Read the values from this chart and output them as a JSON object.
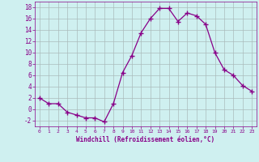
{
  "x": [
    0,
    1,
    2,
    3,
    4,
    5,
    6,
    7,
    8,
    9,
    10,
    11,
    12,
    13,
    14,
    15,
    16,
    17,
    18,
    19,
    20,
    21,
    22,
    23
  ],
  "y": [
    2,
    1,
    1,
    -0.5,
    -1,
    -1.5,
    -1.5,
    -2.2,
    1,
    6.5,
    9.5,
    13.5,
    16,
    17.8,
    17.8,
    15.5,
    17,
    16.5,
    15,
    10,
    7,
    6,
    4.2,
    3.2
  ],
  "line_color": "#880088",
  "marker": "+",
  "marker_size": 4,
  "bg_color": "#cff0f0",
  "grid_color": "#aabbbb",
  "xlabel": "Windchill (Refroidissement éolien,°C)",
  "ylim": [
    -3,
    19
  ],
  "xlim": [
    -0.5,
    23.5
  ],
  "yticks": [
    -2,
    0,
    2,
    4,
    6,
    8,
    10,
    12,
    14,
    16,
    18
  ],
  "xticks": [
    0,
    1,
    2,
    3,
    4,
    5,
    6,
    7,
    8,
    9,
    10,
    11,
    12,
    13,
    14,
    15,
    16,
    17,
    18,
    19,
    20,
    21,
    22,
    23
  ]
}
